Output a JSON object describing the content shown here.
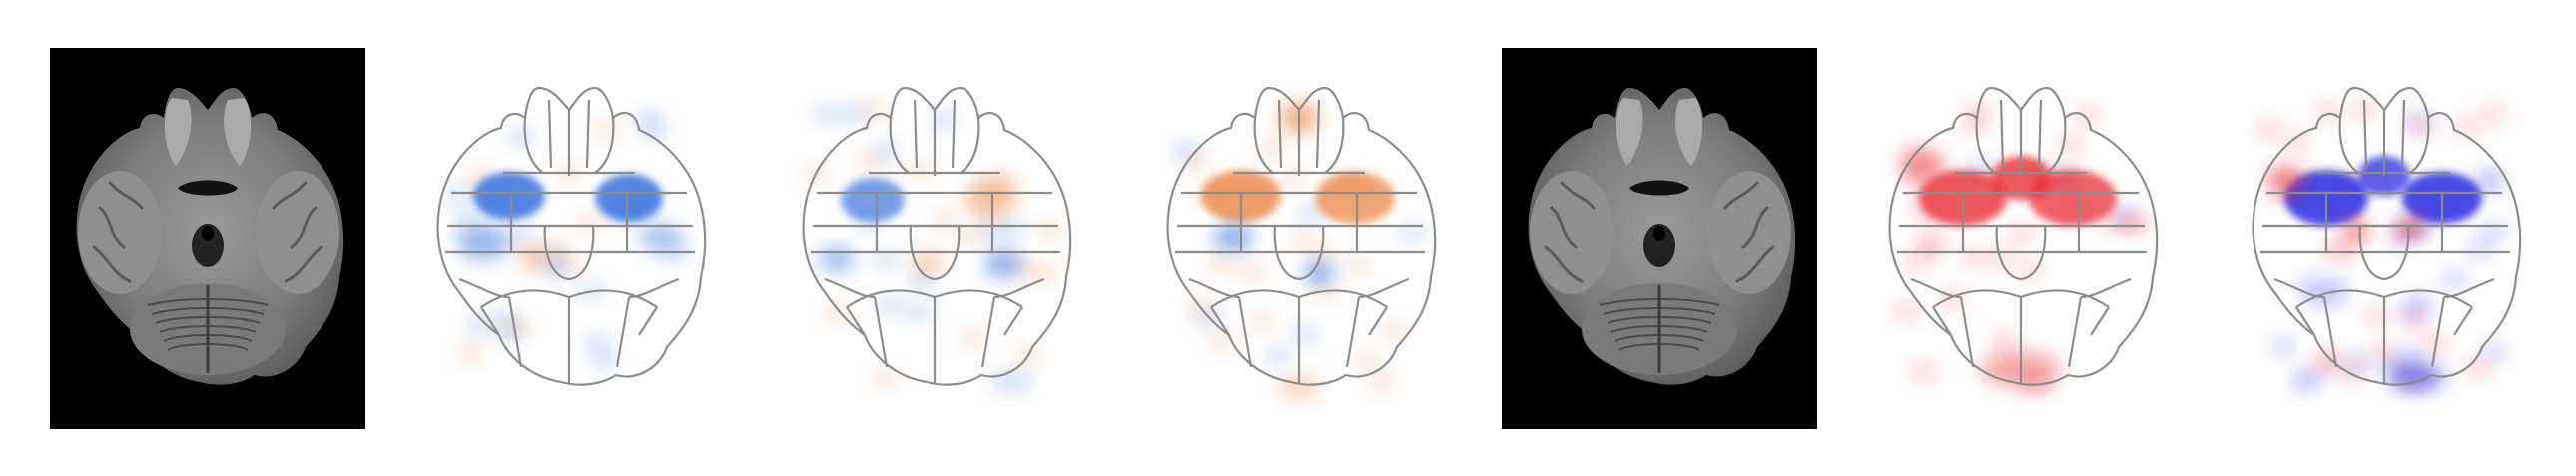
{
  "figure": {
    "panels": [
      {
        "kind": "mri",
        "map": "none"
      },
      {
        "kind": "attribution",
        "map": "blue-dominant",
        "color_positive": "#e8742a",
        "color_negative": "#1d5fd8"
      },
      {
        "kind": "attribution",
        "map": "mixed",
        "color_positive": "#e8742a",
        "color_negative": "#1d5fd8"
      },
      {
        "kind": "attribution",
        "map": "orange-dominant",
        "color_positive": "#e8742a",
        "color_negative": "#1d5fd8"
      },
      {
        "kind": "mri",
        "map": "none"
      },
      {
        "kind": "attribution",
        "map": "red-dominant",
        "color_positive": "#e8232a",
        "color_negative": "#1a1adf"
      },
      {
        "kind": "attribution",
        "map": "blue-red-mixed",
        "color_positive": "#e8232a",
        "color_negative": "#1a1adf"
      }
    ],
    "colors": {
      "background": "#ffffff",
      "mri_background": "#000000",
      "atlas_outline": "#8c8c8c"
    }
  }
}
